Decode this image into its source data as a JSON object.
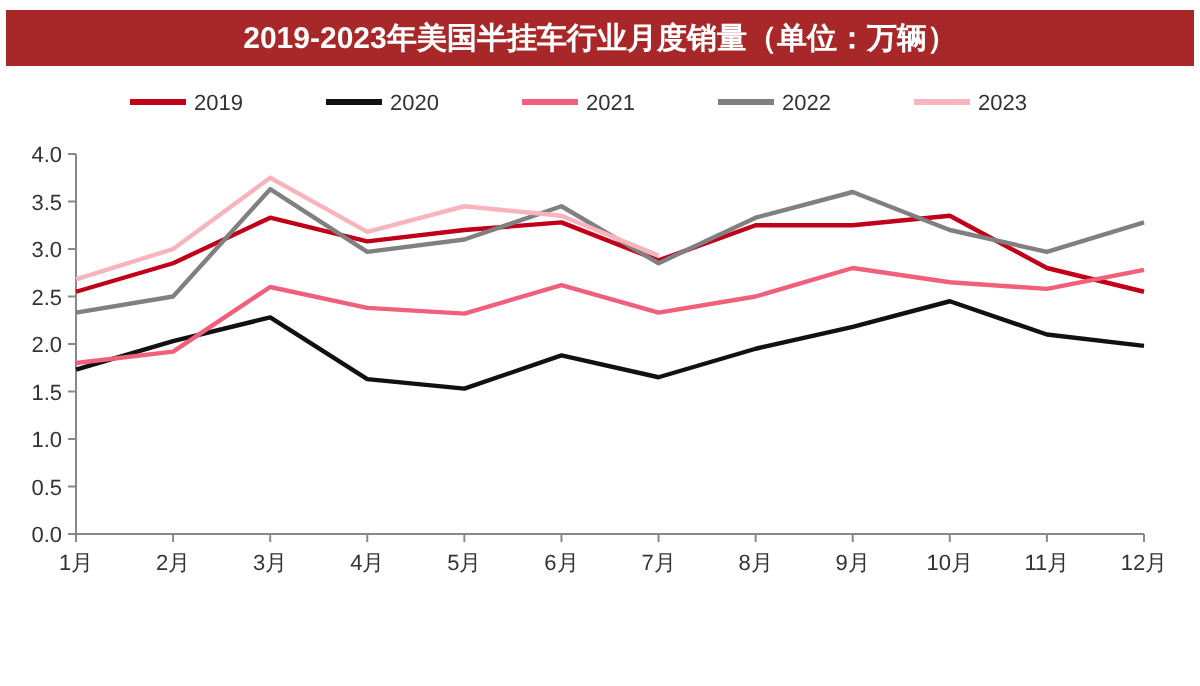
{
  "chart_data": {
    "type": "line",
    "title": "2019-2023年美国半挂车行业月度销量（单位：万辆）",
    "categories": [
      "1月",
      "2月",
      "3月",
      "4月",
      "5月",
      "6月",
      "7月",
      "8月",
      "9月",
      "10月",
      "11月",
      "12月"
    ],
    "series": [
      {
        "name": "2019",
        "color": "#c00018",
        "values": [
          2.55,
          2.85,
          3.33,
          3.08,
          3.2,
          3.28,
          2.88,
          3.25,
          3.25,
          3.35,
          2.8,
          2.55
        ]
      },
      {
        "name": "2020",
        "color": "#111111",
        "values": [
          1.73,
          2.03,
          2.28,
          1.63,
          1.53,
          1.88,
          1.65,
          1.95,
          2.18,
          2.45,
          2.1,
          1.98
        ]
      },
      {
        "name": "2021",
        "color": "#f0607a",
        "values": [
          1.8,
          1.92,
          2.6,
          2.38,
          2.32,
          2.62,
          2.33,
          2.5,
          2.8,
          2.65,
          2.58,
          2.78
        ]
      },
      {
        "name": "2022",
        "color": "#808080",
        "values": [
          2.33,
          2.5,
          3.63,
          2.97,
          3.1,
          3.45,
          2.85,
          3.33,
          3.6,
          3.2,
          2.97,
          3.28
        ]
      },
      {
        "name": "2023",
        "color": "#f8b4bc",
        "values": [
          2.68,
          3.0,
          3.75,
          3.18,
          3.45,
          3.35,
          2.93,
          null,
          null,
          null,
          null,
          null
        ]
      }
    ],
    "ylim": [
      0,
      4
    ],
    "yticks": [
      {
        "value": 0,
        "label": "0.0"
      },
      {
        "value": 0.5,
        "label": "0.5"
      },
      {
        "value": 1,
        "label": "1.0"
      },
      {
        "value": 1.5,
        "label": "1.5"
      },
      {
        "value": 2,
        "label": "2.0"
      },
      {
        "value": 2.5,
        "label": "2.5"
      },
      {
        "value": 3,
        "label": "3.0"
      },
      {
        "value": 3.5,
        "label": "3.5"
      },
      {
        "value": 4,
        "label": "4.0"
      }
    ],
    "grid": false,
    "legend": "top",
    "marker": "none",
    "line_style": "solid"
  }
}
